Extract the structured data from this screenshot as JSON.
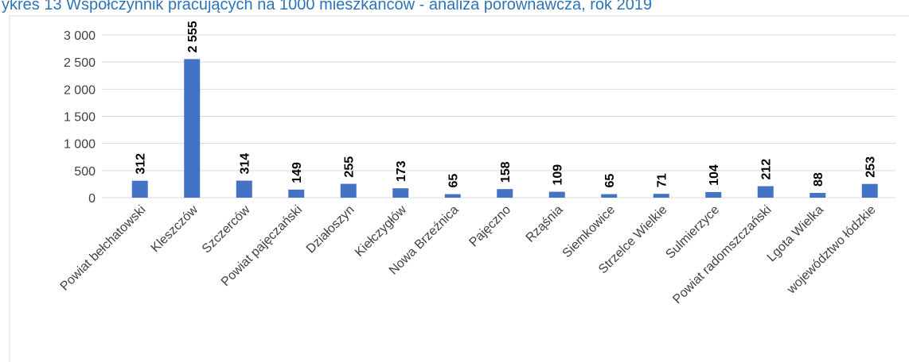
{
  "chart_data": {
    "type": "bar",
    "title": "ykres 13 Współczynnik pracujących na 1000 mieszkańców - analiza porównawcza, rok 2019",
    "categories": [
      "Powiat bełchatowski",
      "Kleszczów",
      "Szczerców",
      "Powiat pajęczański",
      "Działoszyn",
      "Kiełczygłów",
      "Nowa Brzeźnica",
      "Pajęczno",
      "Rząśnia",
      "Siemkowice",
      "Strzelce Wielkie",
      "Sulmierzyce",
      "Powiat radomszczański",
      "Lgota Wielka",
      "województwo łódzkie"
    ],
    "values": [
      312,
      2555,
      314,
      149,
      255,
      173,
      65,
      158,
      109,
      65,
      71,
      104,
      212,
      88,
      253
    ],
    "value_labels": [
      "312",
      "2 555",
      "314",
      "149",
      "255",
      "173",
      "65",
      "158",
      "109",
      "65",
      "71",
      "104",
      "212",
      "88",
      "253"
    ],
    "color": "#4472c4",
    "ylim": [
      0,
      3000
    ],
    "yticks": [
      0,
      500,
      {
        "value": 1000,
        "label": "1 000"
      },
      {
        "value": 1500,
        "label": "1 500"
      },
      {
        "value": 2000,
        "label": "2 000"
      },
      {
        "value": 2500,
        "label": "2 500"
      },
      {
        "value": 3000,
        "label": "3 000"
      }
    ],
    "grid": true
  }
}
